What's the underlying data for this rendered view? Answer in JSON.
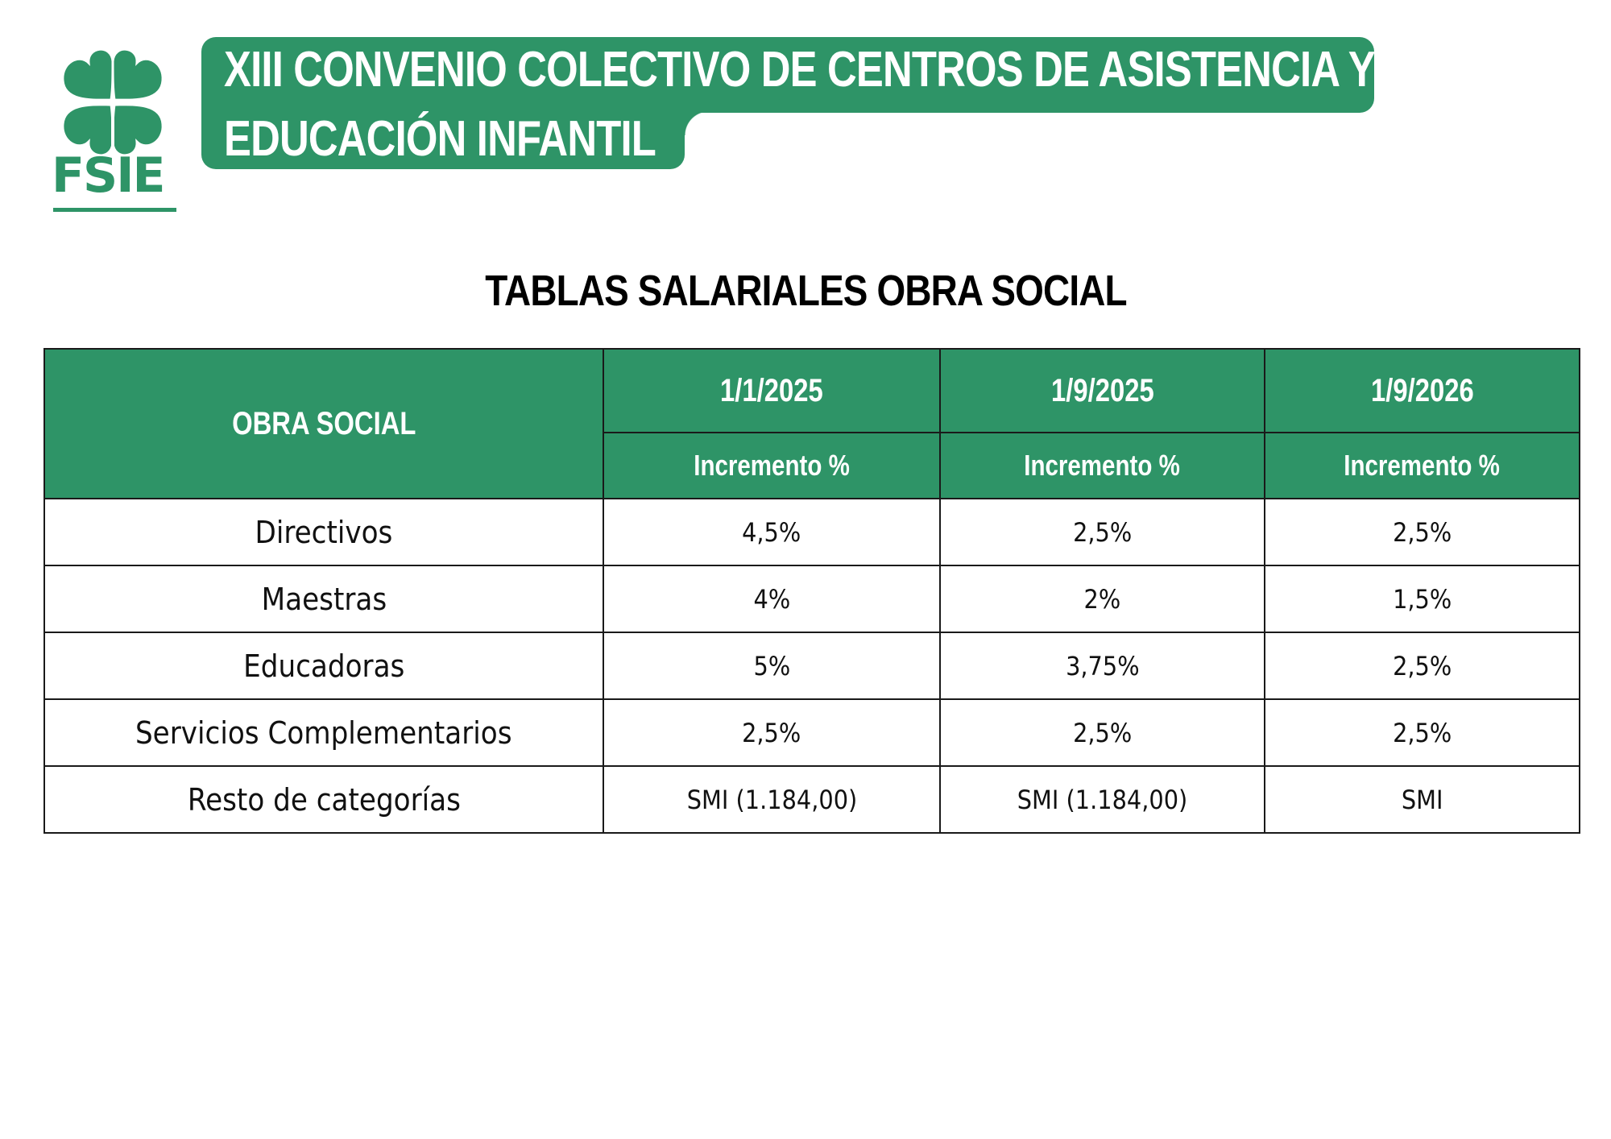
{
  "logo": {
    "text": "FSIE",
    "icon": "four-leaf-clover-icon",
    "color": "#2e9467"
  },
  "banner": {
    "line1": "XIII CONVENIO COLECTIVO DE CENTROS DE ASISTENCIA Y",
    "line2": "EDUCACIÓN INFANTIL",
    "color": "#2e9467"
  },
  "title": "TABLAS SALARIALES OBRA SOCIAL",
  "table": {
    "corner_header": "OBRA SOCIAL",
    "dates": [
      "1/1/2025",
      "1/9/2025",
      "1/9/2026"
    ],
    "subheader": "Incremento %",
    "rows": [
      {
        "category": "Directivos",
        "values": [
          "4,5%",
          "2,5%",
          "2,5%"
        ]
      },
      {
        "category": "Maestras",
        "values": [
          "4%",
          "2%",
          "1,5%"
        ]
      },
      {
        "category": "Educadoras",
        "values": [
          "5%",
          "3,75%",
          "2,5%"
        ]
      },
      {
        "category": "Servicios Complementarios",
        "values": [
          "2,5%",
          "2,5%",
          "2,5%"
        ]
      },
      {
        "category": "Resto de categorías",
        "values": [
          "SMI (1.184,00)",
          "SMI (1.184,00)",
          "SMI"
        ]
      }
    ]
  }
}
